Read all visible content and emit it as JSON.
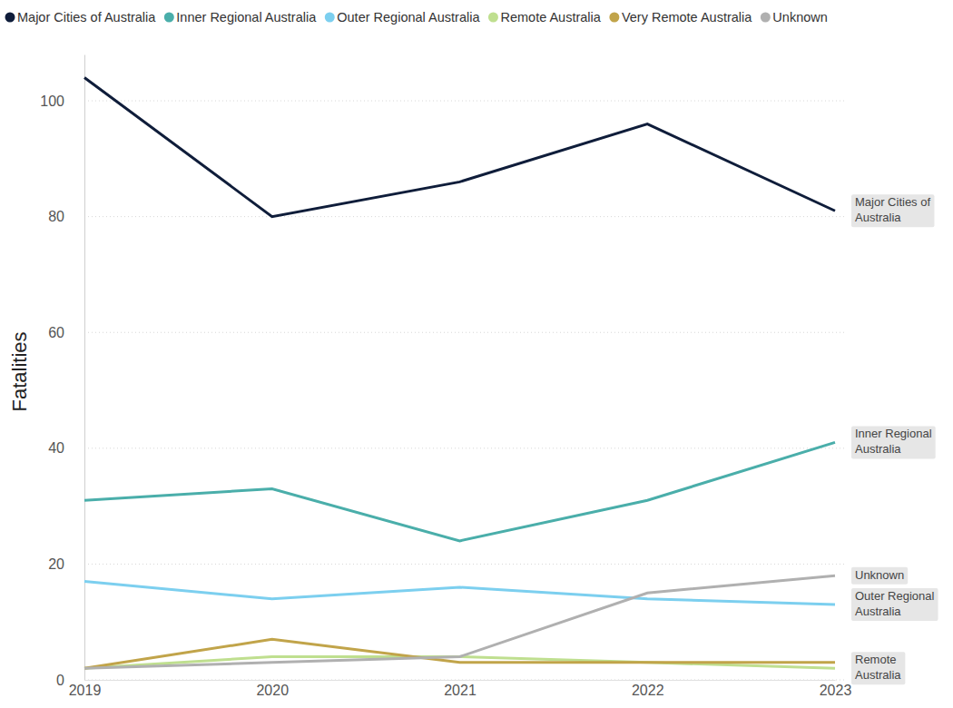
{
  "chart_data": {
    "type": "line",
    "y_label": "Fatalities",
    "x": [
      2019,
      2020,
      2021,
      2022,
      2023
    ],
    "xlim": [
      2019,
      2023
    ],
    "xticks": [
      2019,
      2020,
      2021,
      2022,
      2023
    ],
    "ylim": [
      0,
      108
    ],
    "yticks": [
      0,
      20,
      40,
      60,
      80,
      100
    ],
    "grid": true,
    "legend": "top-left",
    "series": [
      {
        "name": "Major Cities of Australia",
        "color": "#0f1d3a",
        "values": [
          104,
          80,
          86,
          96,
          81
        ]
      },
      {
        "name": "Inner Regional Australia",
        "color": "#4aaeaa",
        "values": [
          31,
          33,
          24,
          31,
          41
        ]
      },
      {
        "name": "Outer Regional Australia",
        "color": "#7ccfef",
        "values": [
          17,
          14,
          16,
          14,
          13
        ]
      },
      {
        "name": "Remote Australia",
        "color": "#bfdf8f",
        "values": [
          2,
          4,
          4,
          3,
          2
        ]
      },
      {
        "name": "Very Remote Australia",
        "color": "#c1a44a",
        "values": [
          2,
          7,
          3,
          3,
          3
        ]
      },
      {
        "name": "Unknown",
        "color": "#b0b0b0",
        "values": [
          2,
          3,
          4,
          15,
          18
        ]
      }
    ]
  }
}
